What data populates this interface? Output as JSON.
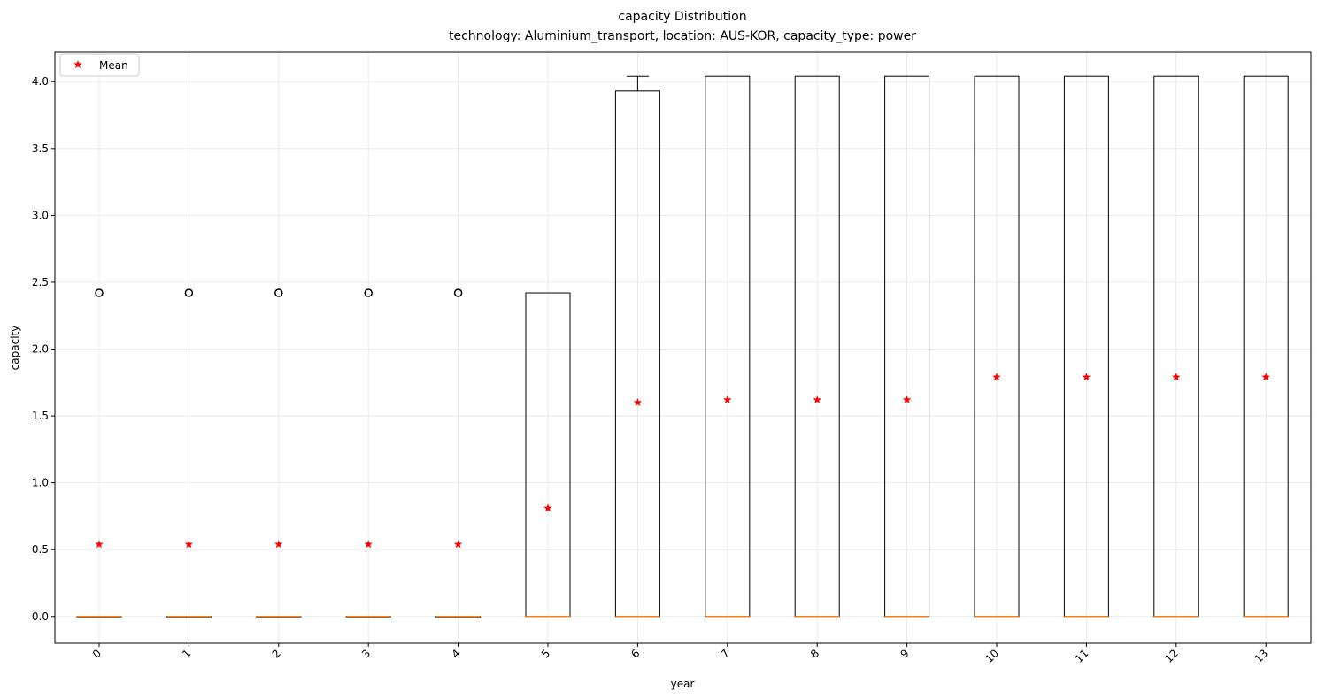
{
  "chart_data": {
    "type": "box",
    "title": "capacity Distribution",
    "subtitle": "technology: Aluminium_transport, location: AUS-KOR, capacity_type: power",
    "xlabel": "year",
    "ylabel": "capacity",
    "categories": [
      "0",
      "1",
      "2",
      "3",
      "4",
      "5",
      "6",
      "7",
      "8",
      "9",
      "10",
      "11",
      "12",
      "13"
    ],
    "ylim": [
      -0.2,
      4.22
    ],
    "yticks": [
      0.0,
      0.5,
      1.0,
      1.5,
      2.0,
      2.5,
      3.0,
      3.5,
      4.0
    ],
    "ytick_labels": [
      "0.0",
      "0.5",
      "1.0",
      "1.5",
      "2.0",
      "2.5",
      "3.0",
      "3.5",
      "4.0"
    ],
    "grid": true,
    "legend": {
      "position": "top-left",
      "entries": [
        {
          "label": "Mean",
          "marker": "red-star"
        }
      ]
    },
    "boxes": [
      {
        "year": "0",
        "q1": 0,
        "median": 0,
        "q3": 0,
        "whisker_low": 0,
        "whisker_high": 0,
        "outliers": [
          2.42
        ],
        "mean": 0.54
      },
      {
        "year": "1",
        "q1": 0,
        "median": 0,
        "q3": 0,
        "whisker_low": 0,
        "whisker_high": 0,
        "outliers": [
          2.42
        ],
        "mean": 0.54
      },
      {
        "year": "2",
        "q1": 0,
        "median": 0,
        "q3": 0,
        "whisker_low": 0,
        "whisker_high": 0,
        "outliers": [
          2.42
        ],
        "mean": 0.54
      },
      {
        "year": "3",
        "q1": 0,
        "median": 0,
        "q3": 0,
        "whisker_low": 0,
        "whisker_high": 0,
        "outliers": [
          2.42
        ],
        "mean": 0.54
      },
      {
        "year": "4",
        "q1": 0,
        "median": 0,
        "q3": 0,
        "whisker_low": 0,
        "whisker_high": 0,
        "outliers": [
          2.42
        ],
        "mean": 0.54
      },
      {
        "year": "5",
        "q1": 0,
        "median": 0,
        "q3": 2.42,
        "whisker_low": 0,
        "whisker_high": 2.42,
        "outliers": [],
        "mean": 0.81
      },
      {
        "year": "6",
        "q1": 0,
        "median": 0,
        "q3": 3.93,
        "whisker_low": 0,
        "whisker_high": 4.04,
        "outliers": [],
        "mean": 1.6
      },
      {
        "year": "7",
        "q1": 0,
        "median": 0,
        "q3": 4.04,
        "whisker_low": 0,
        "whisker_high": 4.04,
        "outliers": [],
        "mean": 1.62
      },
      {
        "year": "8",
        "q1": 0,
        "median": 0,
        "q3": 4.04,
        "whisker_low": 0,
        "whisker_high": 4.04,
        "outliers": [],
        "mean": 1.62
      },
      {
        "year": "9",
        "q1": 0,
        "median": 0,
        "q3": 4.04,
        "whisker_low": 0,
        "whisker_high": 4.04,
        "outliers": [],
        "mean": 1.62
      },
      {
        "year": "10",
        "q1": 0,
        "median": 0,
        "q3": 4.04,
        "whisker_low": 0,
        "whisker_high": 4.04,
        "outliers": [],
        "mean": 1.79
      },
      {
        "year": "11",
        "q1": 0,
        "median": 0,
        "q3": 4.04,
        "whisker_low": 0,
        "whisker_high": 4.04,
        "outliers": [],
        "mean": 1.79
      },
      {
        "year": "12",
        "q1": 0,
        "median": 0,
        "q3": 4.04,
        "whisker_low": 0,
        "whisker_high": 4.04,
        "outliers": [],
        "mean": 1.79
      },
      {
        "year": "13",
        "q1": 0,
        "median": 0,
        "q3": 4.04,
        "whisker_low": 0,
        "whisker_high": 4.04,
        "outliers": [],
        "mean": 1.79
      }
    ],
    "colors": {
      "box": "#000000",
      "median": "#ff7f0e",
      "mean": "#ff0000",
      "grid": "#e6e6e6"
    }
  }
}
